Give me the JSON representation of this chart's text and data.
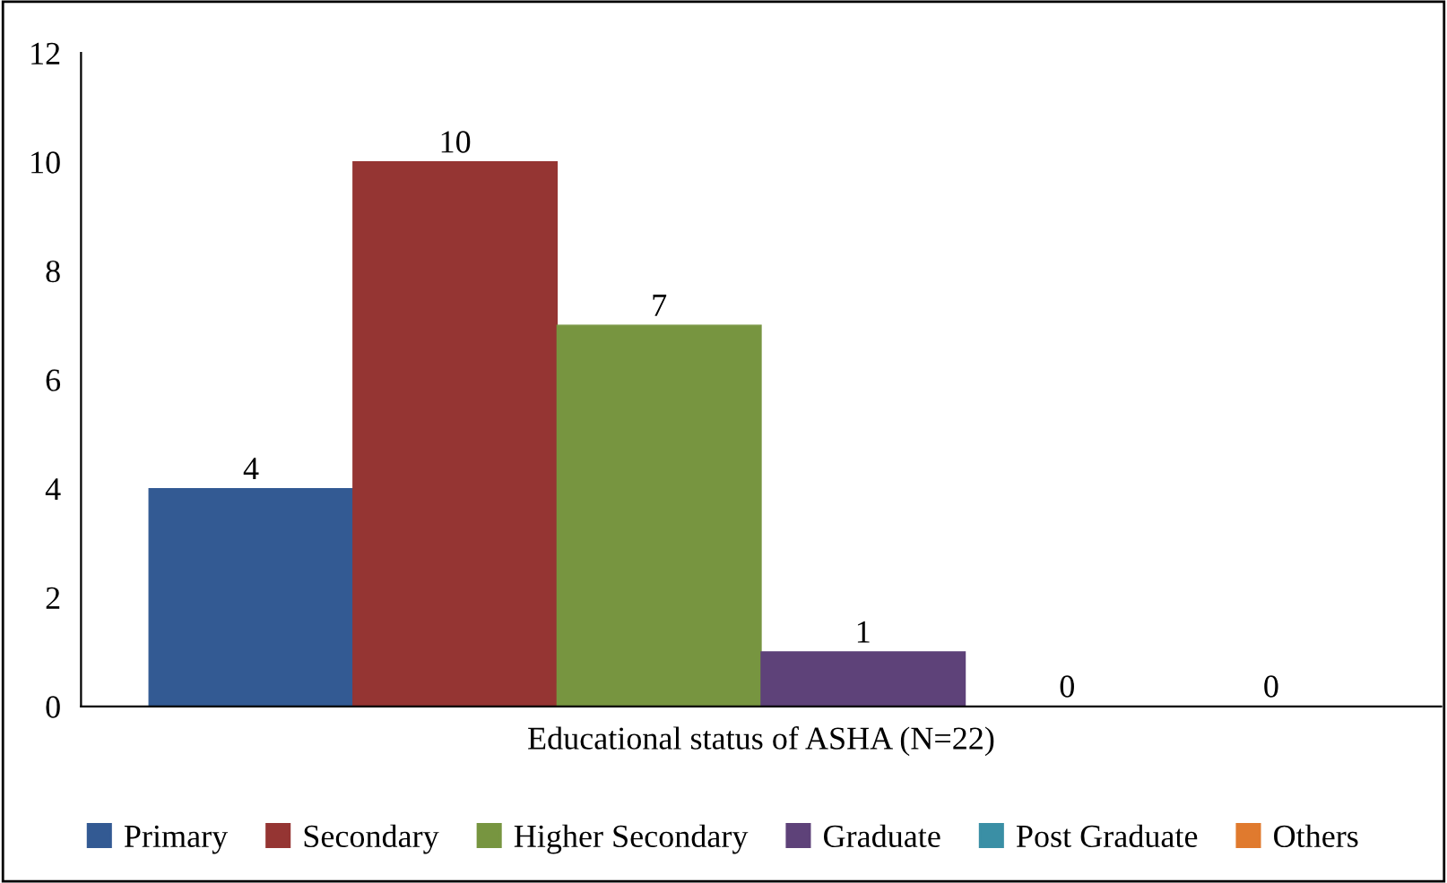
{
  "chart_data": {
    "type": "bar",
    "categories": [
      "Educational status of ASHA (N=22)"
    ],
    "series": [
      {
        "name": "Primary",
        "color": "#335a93",
        "values": [
          4
        ]
      },
      {
        "name": "Secondary",
        "color": "#953533",
        "values": [
          10
        ]
      },
      {
        "name": "Higher Secondary",
        "color": "#779540",
        "values": [
          7
        ]
      },
      {
        "name": "Graduate",
        "color": "#5e4279",
        "values": [
          1
        ]
      },
      {
        "name": "Post Graduate",
        "color": "#3a8fa5",
        "values": [
          0
        ]
      },
      {
        "name": "Others",
        "color": "#e07a2e",
        "values": [
          0
        ]
      }
    ],
    "ylim": [
      0,
      12
    ],
    "yticks": [
      0,
      2,
      4,
      6,
      8,
      10,
      12
    ],
    "data_labels": true,
    "legend": "bottom",
    "grid": false
  }
}
